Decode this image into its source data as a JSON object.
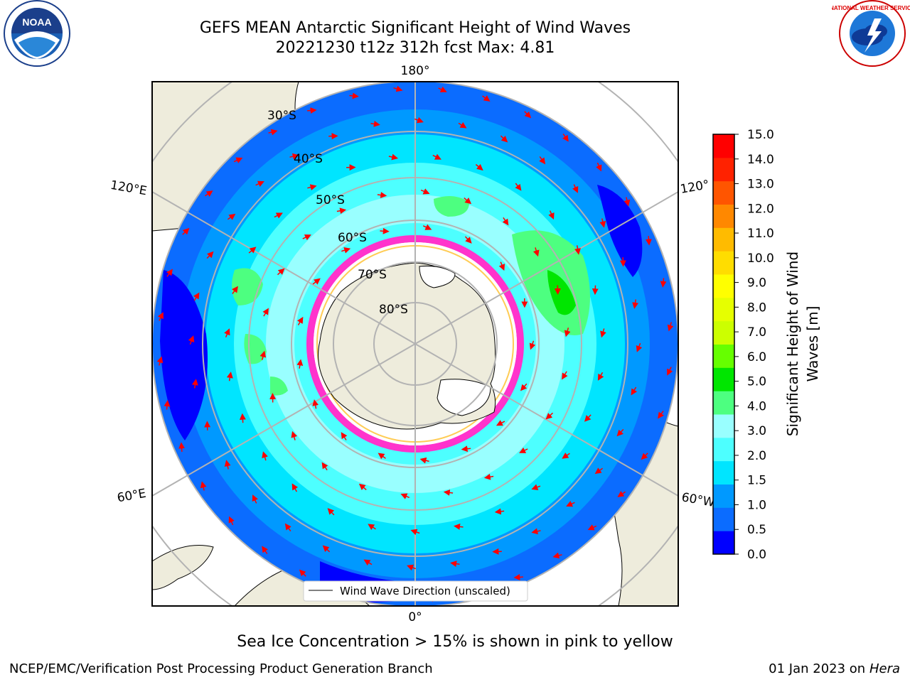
{
  "header": {
    "title_line1": "GEFS MEAN Antarctic Significant Height of Wind Waves",
    "title_line2": "20221230 t12z 312h fcst   Max: 4.81"
  },
  "map": {
    "lon_labels": {
      "top": "180°",
      "bottom": "0°",
      "left_upper": "120°E",
      "left_lower": "60°E",
      "right_upper": "120°",
      "right_lower": "60°W"
    },
    "lat_labels": [
      "30°S",
      "40°S",
      "50°S",
      "60°S",
      "70°S",
      "80°S"
    ],
    "legend_label": "Wind Wave Direction (unscaled)"
  },
  "colorbar": {
    "label": "Significant Height of Wind Waves [m]",
    "ticks": [
      "0.0",
      "0.5",
      "1.0",
      "1.5",
      "2.0",
      "3.0",
      "4.0",
      "5.0",
      "6.0",
      "7.0",
      "8.0",
      "9.0",
      "10.0",
      "11.0",
      "12.0",
      "13.0",
      "14.0",
      "15.0"
    ],
    "colors": [
      "#0000ff",
      "#0b6cff",
      "#0099ff",
      "#00e5ff",
      "#4dffff",
      "#99ffff",
      "#4dff80",
      "#00e600",
      "#66ff00",
      "#ccff00",
      "#e6ff00",
      "#ffff00",
      "#ffdd00",
      "#ffbb00",
      "#ff8800",
      "#ff5500",
      "#ff2200",
      "#ff0000"
    ]
  },
  "caption": "Sea Ice Concentration > 15% is shown in pink to yellow",
  "footer": {
    "left": "NCEP/EMC/Verification Post Processing Product Generation Branch",
    "date": "01 Jan 2023 on",
    "system": "Hera"
  },
  "logos": {
    "noaa": "NOAA",
    "nws": "NATIONAL WEATHER SERVICE"
  }
}
